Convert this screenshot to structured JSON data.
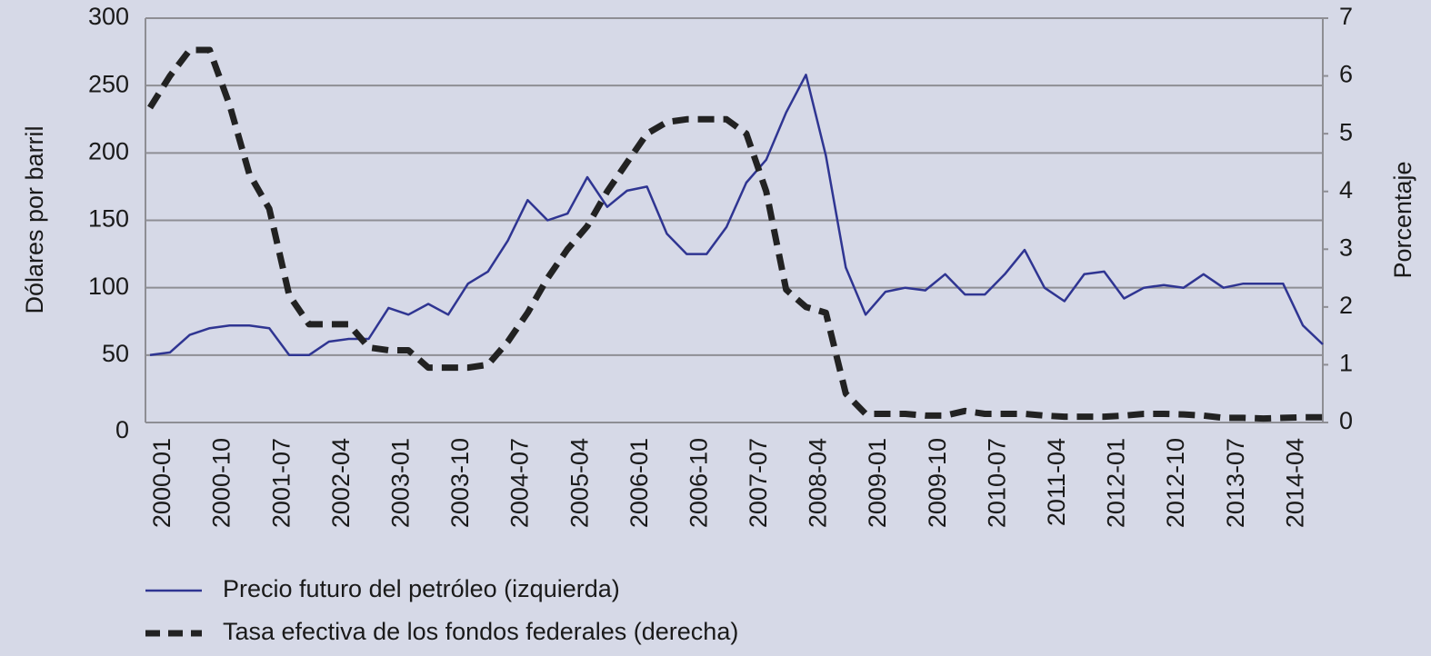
{
  "chart_data": {
    "type": "line",
    "y_label": "Dólares por barril",
    "y2_label": "Porcentaje",
    "categories": [
      "2000-01",
      null,
      null,
      "2000-10",
      null,
      null,
      "2001-07",
      null,
      null,
      "2002-04",
      null,
      null,
      "2003-01",
      null,
      null,
      "2003-10",
      null,
      null,
      "2004-07",
      null,
      null,
      "2005-04",
      null,
      null,
      "2006-01",
      null,
      null,
      "2006-10",
      null,
      null,
      "2007-07",
      null,
      null,
      "2008-04",
      null,
      null,
      "2009-01",
      null,
      null,
      "2009-10",
      null,
      null,
      "2010-07",
      null,
      null,
      "2011-04",
      null,
      null,
      "2012-01",
      null,
      null,
      "2012-10",
      null,
      null,
      "2013-07",
      null,
      null,
      "2014-04",
      null,
      null
    ],
    "series": [
      {
        "name": "Precio futuro del petróleo (izquierda)",
        "color": "#2f3592",
        "dash": false,
        "values": [
          50,
          52,
          65,
          70,
          72,
          72,
          70,
          50,
          50,
          60,
          62,
          62,
          85,
          80,
          88,
          80,
          103,
          112,
          135,
          165,
          150,
          155,
          182,
          160,
          172,
          175,
          140,
          125,
          125,
          145,
          178,
          195,
          230,
          258,
          198,
          115,
          80,
          97,
          100,
          98,
          110,
          95,
          95,
          110,
          128,
          100,
          90,
          110,
          112,
          92,
          100,
          102,
          100,
          110,
          100,
          103,
          103,
          103,
          72,
          58
        ]
      },
      {
        "name": "Tasa efectiva de los fondos federales (derecha)",
        "color": "#222222",
        "dash": true,
        "axis": "y2",
        "values": [
          5.45,
          6.0,
          6.45,
          6.45,
          5.5,
          4.3,
          3.7,
          2.2,
          1.7,
          1.7,
          1.7,
          1.3,
          1.25,
          1.25,
          0.95,
          0.95,
          0.95,
          1.0,
          1.4,
          1.9,
          2.5,
          3.0,
          3.4,
          4.0,
          4.5,
          5.0,
          5.2,
          5.25,
          5.25,
          5.25,
          5.0,
          4.0,
          2.3,
          2.0,
          1.9,
          0.5,
          0.15,
          0.15,
          0.15,
          0.12,
          0.12,
          0.2,
          0.15,
          0.15,
          0.15,
          0.12,
          0.1,
          0.1,
          0.1,
          0.12,
          0.15,
          0.15,
          0.14,
          0.12,
          0.08,
          0.08,
          0.07,
          0.08,
          0.09,
          0.09
        ]
      }
    ],
    "ylim": [
      0,
      300
    ],
    "yticks": [
      0,
      50,
      100,
      150,
      200,
      250,
      300
    ],
    "y2lim": [
      0,
      7
    ],
    "y2ticks": [
      0,
      1,
      2,
      3,
      4,
      5,
      6,
      7
    ],
    "grid": true
  }
}
